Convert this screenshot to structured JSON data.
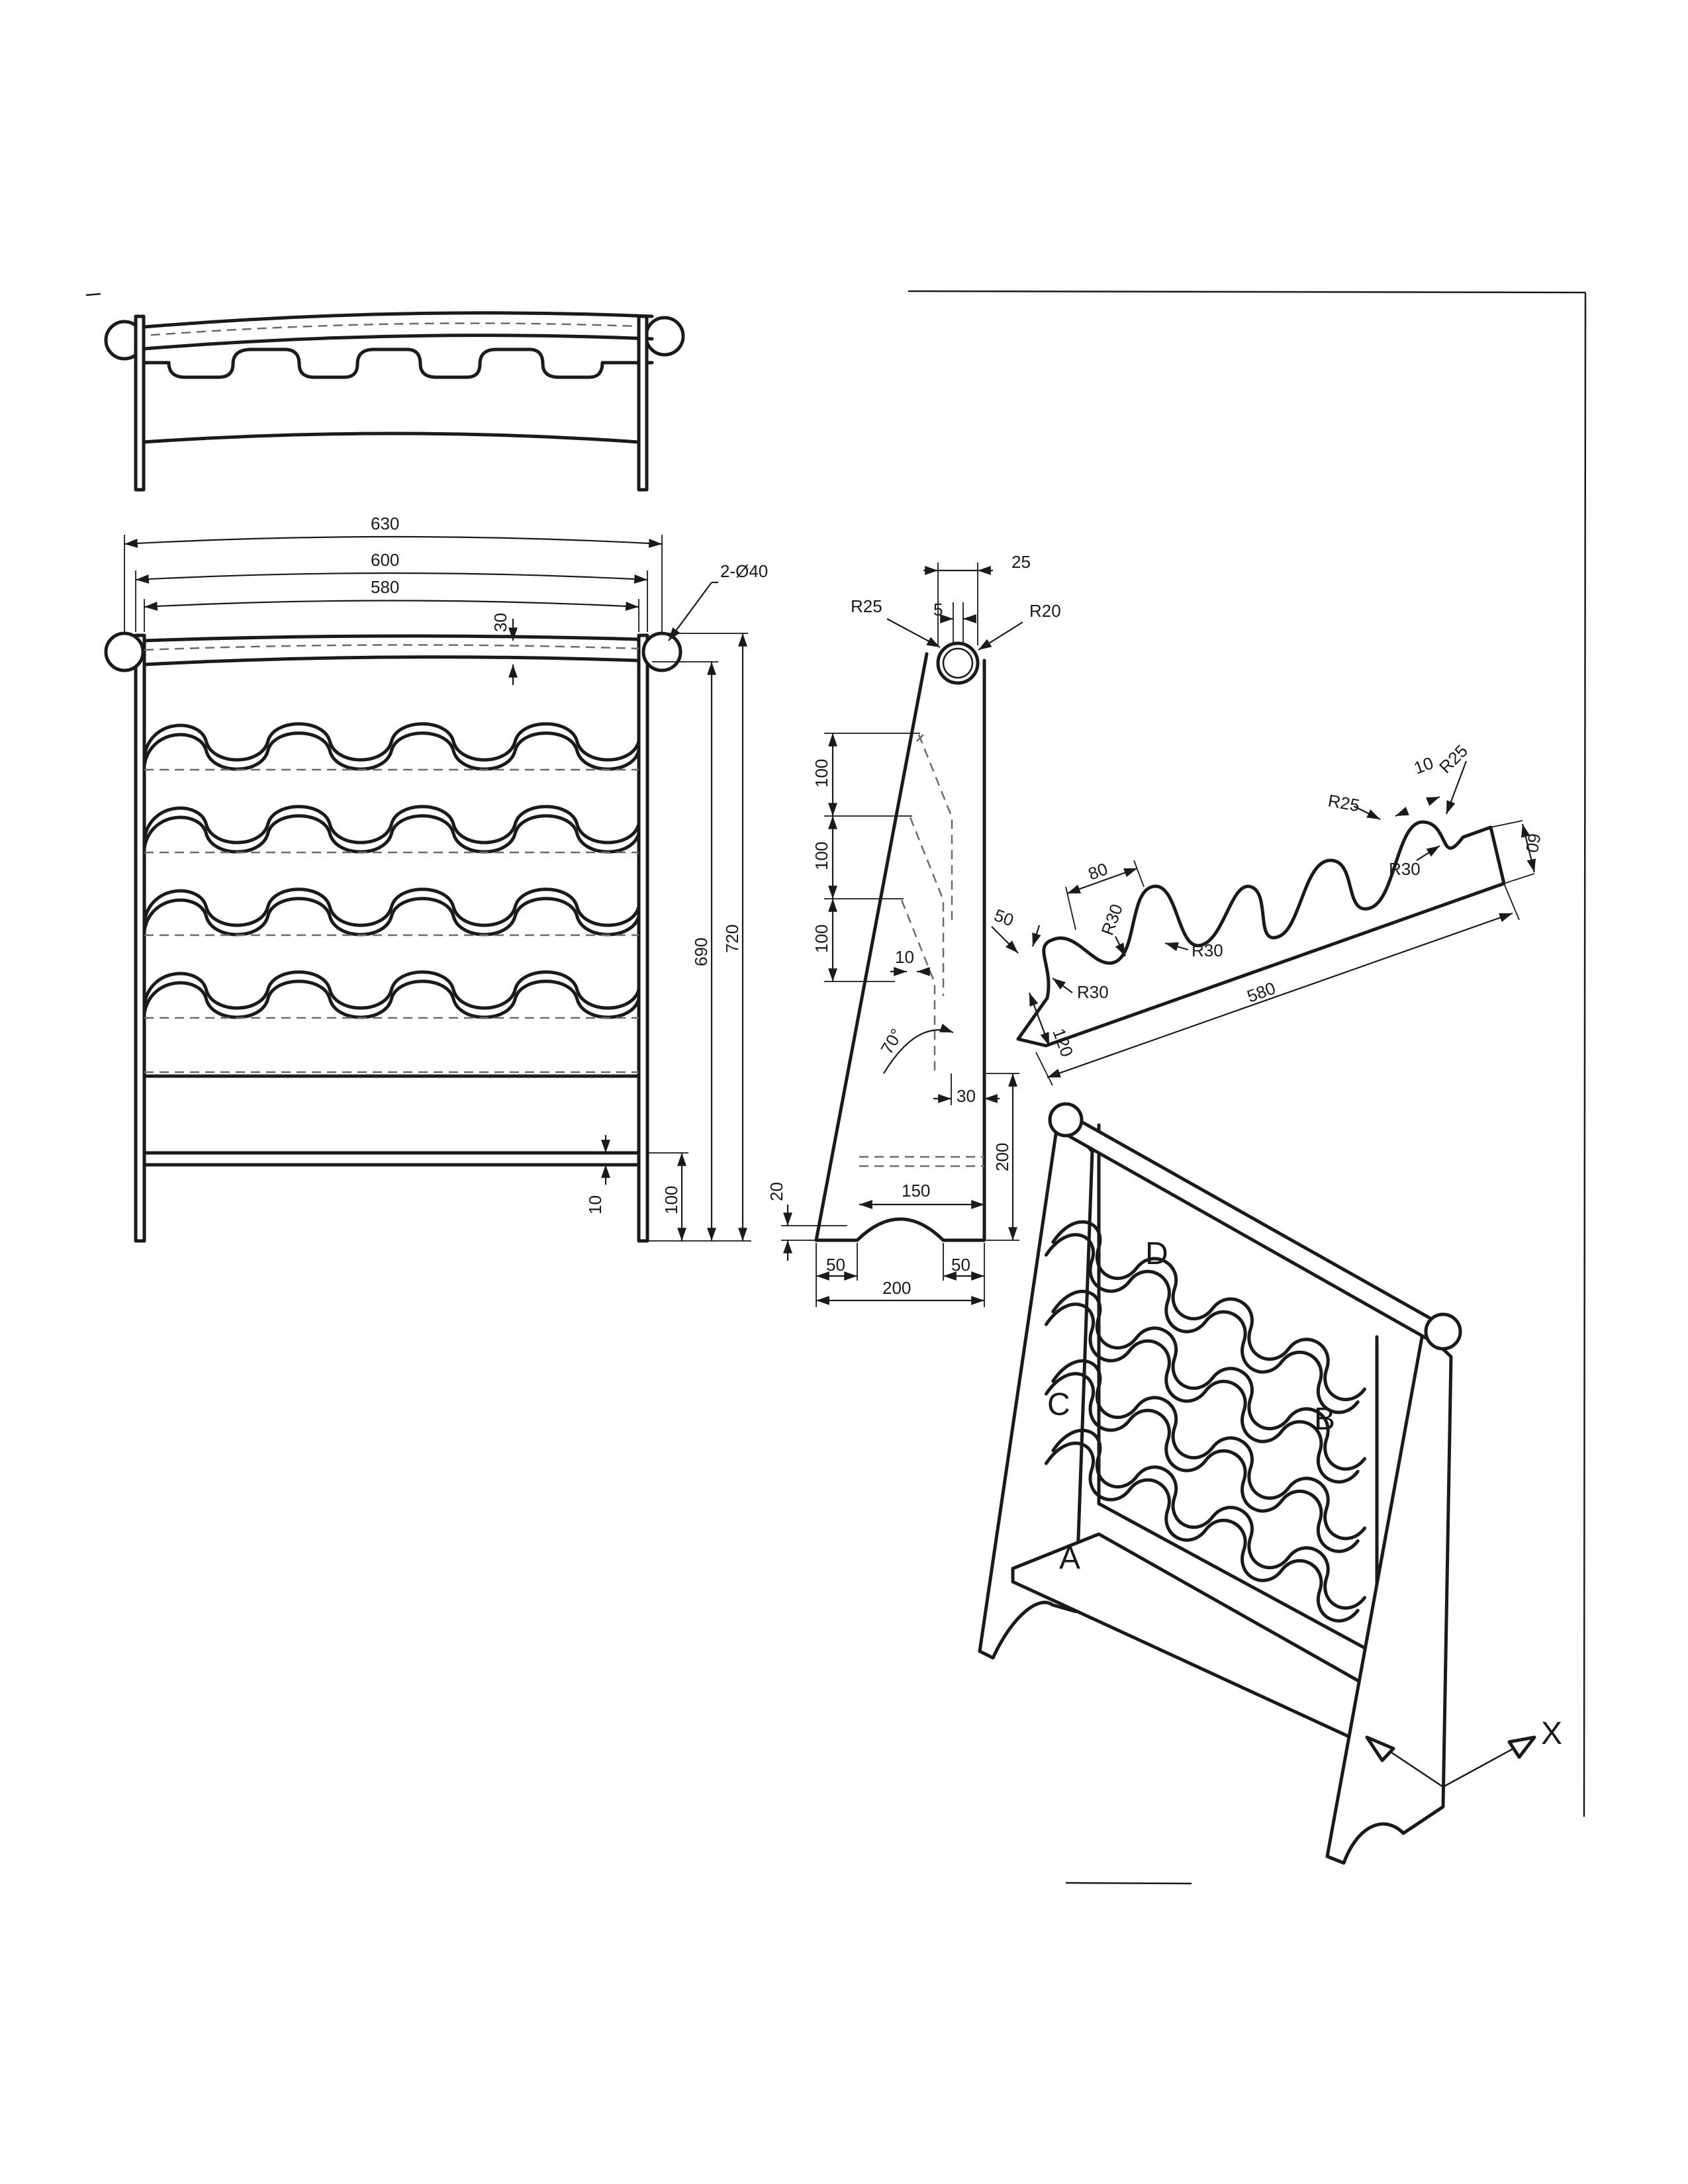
{
  "front_view": {
    "dims": {
      "overall_width": "630",
      "bar_width": "600",
      "inner_width": "580",
      "knob": "2-Ø40",
      "top_offset": "30",
      "height_690": "690",
      "height_720": "720",
      "shelf_height": "100",
      "shelf_thickness": "10"
    }
  },
  "side_view": {
    "dims": {
      "top_width": "25",
      "gap": "5",
      "radius_left": "R25",
      "radius_right": "R20",
      "spacing_1": "100",
      "spacing_2": "100",
      "spacing_3": "100",
      "slot": "10",
      "angle": "70°",
      "rail_offset": "30",
      "foot_rise": "20",
      "shelf_depth": "150",
      "shelf_height": "200",
      "foot_left": "50",
      "foot_right": "50",
      "base_width": "200"
    }
  },
  "rack_part": {
    "dims": {
      "tip": "50",
      "pitch": "80",
      "r30_a": "R30",
      "r30_b": "R30",
      "r30_c": "R30",
      "r30_d": "R30",
      "r25_a": "R25",
      "r25_b": "R25",
      "notch": "10",
      "end_height": "60",
      "end_depth": "120",
      "length": "580"
    }
  },
  "iso_view": {
    "labels": {
      "a": "A",
      "b": "B",
      "c": "C",
      "d": "D"
    },
    "axis_label": "X"
  }
}
